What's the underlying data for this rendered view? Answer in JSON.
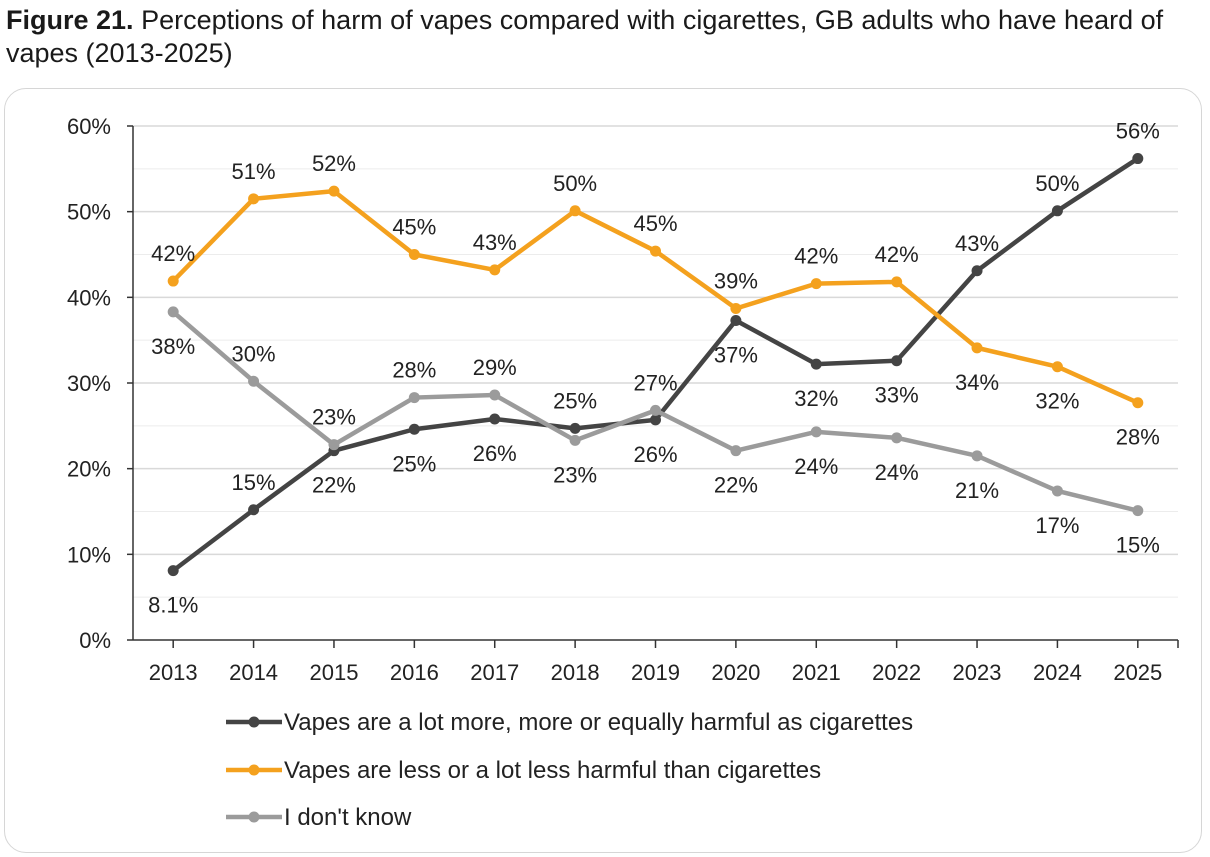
{
  "title": {
    "prefix": "Figure 21.",
    "text": "Perceptions of harm of vapes compared with cigarettes, GB adults who have heard of vapes (2013-2025)"
  },
  "colors": {
    "more_harmful": "#444444",
    "less_harmful": "#f4a11e",
    "dont_know": "#9b9b9b",
    "grid": "#d9d9d9",
    "axis": "#333333"
  },
  "chart_data": {
    "type": "line",
    "x": [
      "2013",
      "2014",
      "2015",
      "2016",
      "2017",
      "2018",
      "2019",
      "2020",
      "2021",
      "2022",
      "2023",
      "2024",
      "2025"
    ],
    "ylim": [
      0,
      60
    ],
    "yticks": [
      0,
      10,
      20,
      30,
      40,
      50,
      60
    ],
    "ytick_labels": [
      "0%",
      "10%",
      "20%",
      "30%",
      "40%",
      "50%",
      "60%"
    ],
    "grid": true,
    "legend_position": "bottom",
    "series": [
      {
        "name": "Vapes are a lot more, more or equally harmful as cigarettes",
        "color_key": "more_harmful",
        "values": [
          8.1,
          15.2,
          22.1,
          24.6,
          25.8,
          24.7,
          25.7,
          37.3,
          32.2,
          32.6,
          43.1,
          50.1,
          56.2
        ],
        "labels": [
          "8.1%",
          "15%",
          "22%",
          "25%",
          "26%",
          "25%",
          "26%",
          "37%",
          "32%",
          "33%",
          "43%",
          "50%",
          "56%"
        ],
        "label_pos": [
          "below",
          "above",
          "below",
          "below",
          "below",
          "above",
          "below",
          "below",
          "below",
          "below",
          "above",
          "above",
          "above"
        ]
      },
      {
        "name": "Vapes are less or a lot less harmful than cigarettes",
        "color_key": "less_harmful",
        "values": [
          41.9,
          51.5,
          52.4,
          45.0,
          43.2,
          50.1,
          45.4,
          38.7,
          41.6,
          41.8,
          34.1,
          31.9,
          27.7
        ],
        "labels": [
          "42%",
          "51%",
          "52%",
          "45%",
          "43%",
          "50%",
          "45%",
          "39%",
          "42%",
          "42%",
          "34%",
          "32%",
          "28%"
        ],
        "label_pos": [
          "above",
          "above",
          "above",
          "above",
          "above",
          "above",
          "above",
          "above",
          "above",
          "above",
          "below",
          "below",
          "below"
        ]
      },
      {
        "name": "I don't know",
        "color_key": "dont_know",
        "values": [
          38.3,
          30.2,
          22.8,
          28.3,
          28.6,
          23.3,
          26.8,
          22.1,
          24.3,
          23.6,
          21.5,
          17.4,
          15.1
        ],
        "labels": [
          "38%",
          "30%",
          "23%",
          "28%",
          "29%",
          "23%",
          "27%",
          "22%",
          "24%",
          "24%",
          "21%",
          "17%",
          "15%"
        ],
        "label_pos": [
          "below",
          "above",
          "above",
          "above",
          "above",
          "below",
          "above",
          "below",
          "below",
          "below",
          "below",
          "below",
          "below"
        ]
      }
    ]
  }
}
